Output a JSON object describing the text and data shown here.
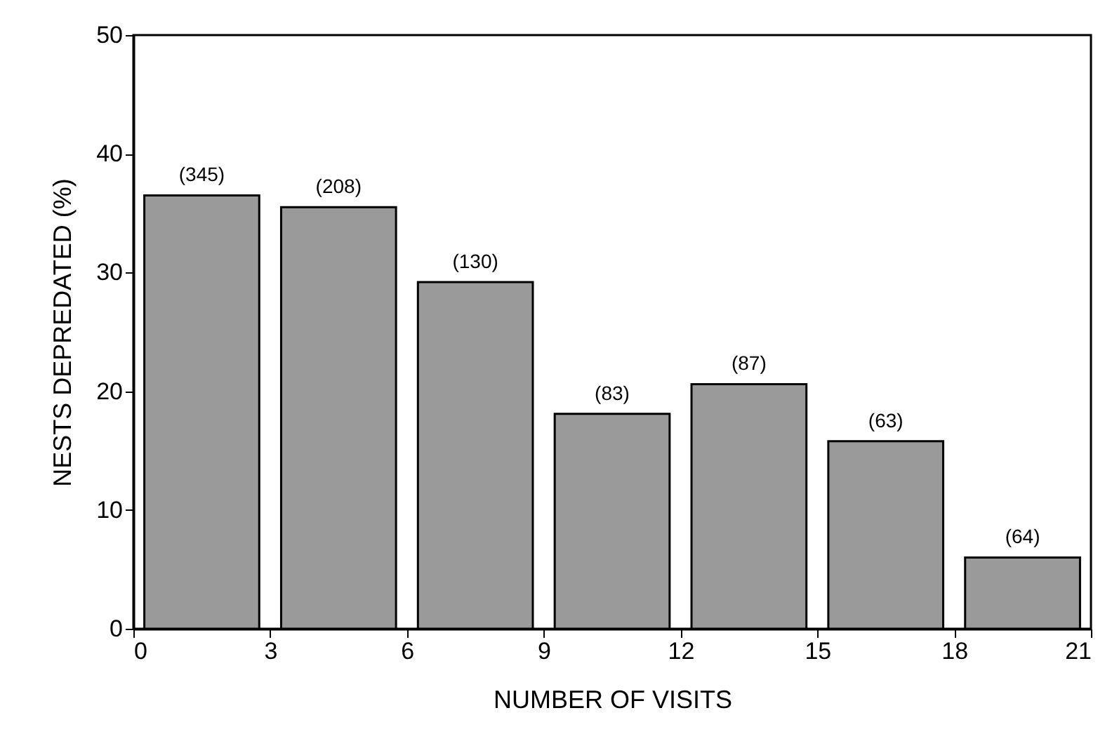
{
  "chart_data": {
    "type": "histogram",
    "xlabel": "NUMBER OF VISITS",
    "ylabel": "NESTS DEPREDATED (%)",
    "bins": [
      0,
      3,
      6,
      9,
      12,
      15,
      18,
      21
    ],
    "values": [
      36.5,
      35.5,
      29.2,
      18.1,
      20.6,
      15.8,
      6.0
    ],
    "annotations": [
      {
        "text": "(345)",
        "x": 1.5,
        "y": 36.5
      },
      {
        "text": "(208)",
        "x": 4.5,
        "y": 35.5
      },
      {
        "text": "(130)",
        "x": 7.5,
        "y": 29.2
      },
      {
        "text": "(83)",
        "x": 10.5,
        "y": 18.1
      },
      {
        "text": "(87)",
        "x": 13.5,
        "y": 20.6
      },
      {
        "text": "(63)",
        "x": 16.5,
        "y": 15.8
      },
      {
        "text": "(64)",
        "x": 19.5,
        "y": 6.0
      }
    ],
    "color": "#9a9a9a",
    "xlim": [
      0,
      21
    ],
    "xticks": [
      0,
      3,
      6,
      9,
      12,
      15,
      18,
      21
    ],
    "ylim": [
      0,
      50
    ],
    "yticks": [
      0,
      10,
      20,
      30,
      40,
      50
    ],
    "grid": false
  }
}
